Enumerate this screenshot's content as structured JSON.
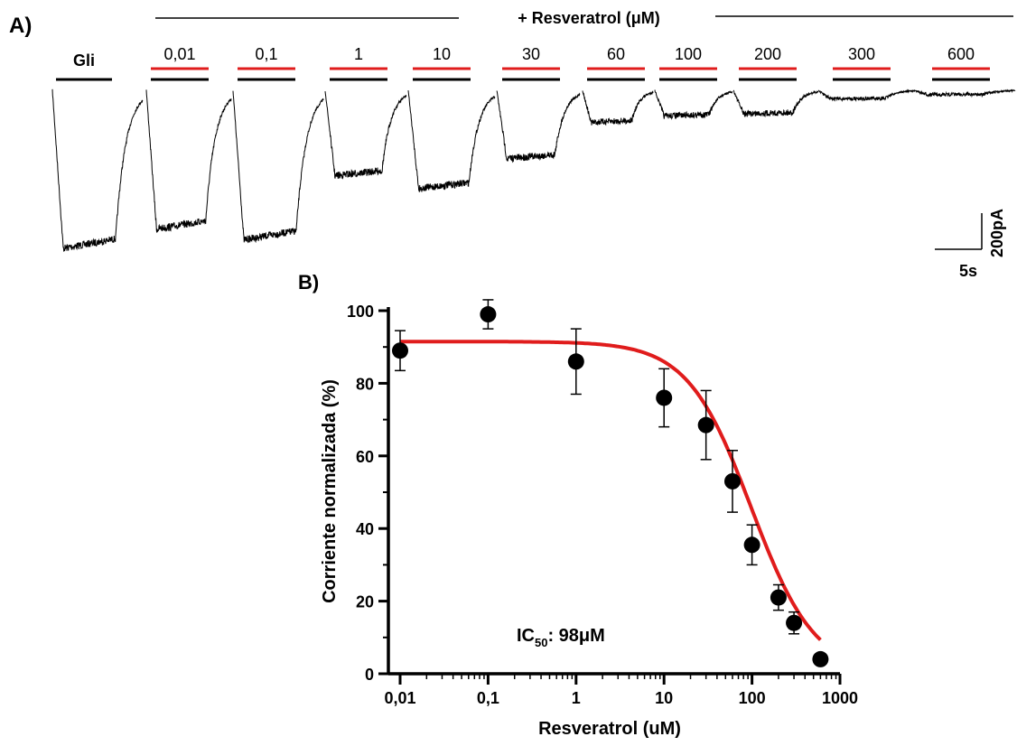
{
  "panel_a": {
    "label": "A)",
    "drug_header": "+ Resveratrol (μM)",
    "control_label": "Gli",
    "concentration_labels": [
      "0,01",
      "0,1",
      "1",
      "10",
      "30",
      "60",
      "100",
      "200",
      "300",
      "600"
    ],
    "scale_bar": {
      "current_label": "200pA",
      "time_label": "5s"
    },
    "trace_peaks_pA": [
      -740,
      -650,
      -700,
      -400,
      -460,
      -320,
      -150,
      -120,
      -110,
      -40,
      -20
    ],
    "colors": {
      "trace": "#000000",
      "drug_bar": "#e01c1c",
      "agonist_bar": "#000000"
    }
  },
  "panel_b": {
    "label": "B)",
    "annotation": {
      "prefix": "IC",
      "subscript": "50",
      "suffix": ": 98μM"
    },
    "chart_data": {
      "type": "scatter",
      "xlabel": "Resveratrol (uM)",
      "ylabel": "Corriente normalizada (%)",
      "xscale": "log",
      "xlim": [
        0.01,
        1000
      ],
      "ylim": [
        0,
        100
      ],
      "xticks": [
        0.01,
        0.1,
        1,
        10,
        100,
        1000
      ],
      "xtick_labels": [
        "0,01",
        "0,1",
        "1",
        "10",
        "100",
        "1000"
      ],
      "yticks": [
        0,
        20,
        40,
        60,
        80,
        100
      ],
      "ytick_labels": [
        "0",
        "20",
        "40",
        "60",
        "80",
        "100"
      ],
      "x": [
        0.01,
        0.1,
        1,
        10,
        30,
        60,
        100,
        200,
        300,
        600
      ],
      "y": [
        89,
        99,
        86,
        76,
        68.5,
        53,
        35.5,
        21,
        14,
        4
      ],
      "yerr": [
        5.5,
        4,
        9,
        8,
        9.5,
        8.5,
        5.5,
        3.5,
        3,
        1
      ],
      "fit": {
        "top": 91.5,
        "bottom": 0,
        "ic50": 98,
        "hill": 1.2,
        "color": "#e01c1c"
      },
      "marker_color": "#000000",
      "grid": false
    }
  }
}
